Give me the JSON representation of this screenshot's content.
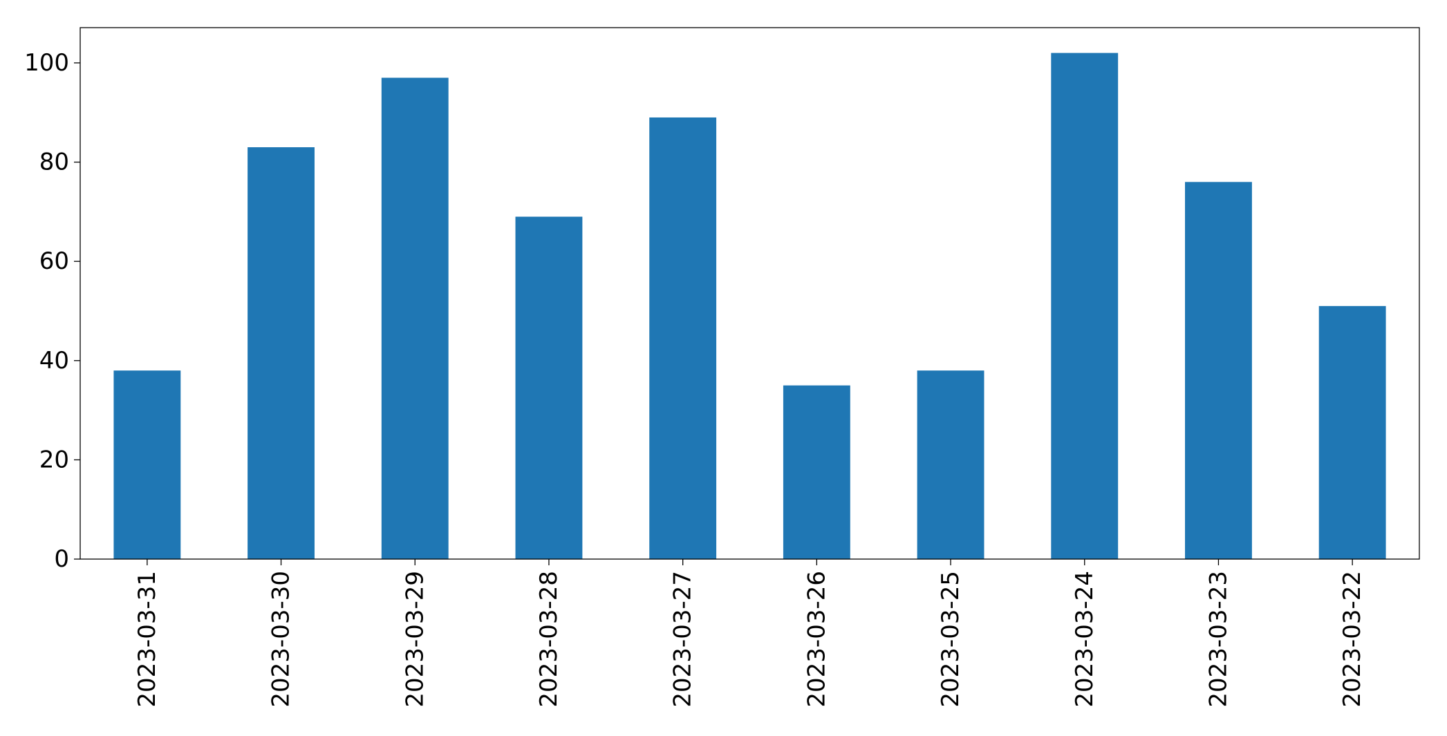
{
  "chart_data": {
    "type": "bar",
    "categories": [
      "2023-03-31",
      "2023-03-30",
      "2023-03-29",
      "2023-03-28",
      "2023-03-27",
      "2023-03-26",
      "2023-03-25",
      "2023-03-24",
      "2023-03-23",
      "2023-03-22"
    ],
    "values": [
      38,
      83,
      97,
      69,
      89,
      35,
      38,
      102,
      76,
      51
    ],
    "color": "#1f77b4",
    "ylim": [
      0,
      107.1
    ],
    "yticks": [
      0,
      20,
      40,
      60,
      80,
      100
    ],
    "grid": false
  }
}
